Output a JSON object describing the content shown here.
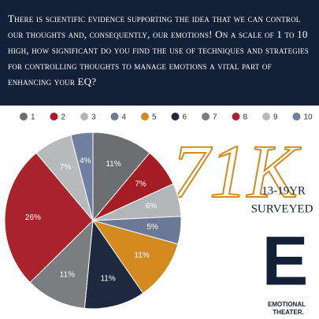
{
  "chart_data": {
    "type": "pie",
    "title": "There is scientific evidence supporting the idea that we can control our thoughts and, consequently, our emotions! On a scale of 1 to 10 high, how significant do you find the use of techniques and strategies for controlling thoughts to manage emotions a vital part of enhancing your EQ?",
    "categories": [
      "1",
      "2",
      "3",
      "4",
      "5",
      "6",
      "7",
      "8",
      "9",
      "10"
    ],
    "values": [
      11,
      7,
      6,
      5,
      11,
      11,
      11,
      26,
      7,
      4
    ],
    "value_labels": [
      "11%",
      "7%",
      "6%",
      "5%",
      "11%",
      "11%",
      "11%",
      "26%",
      "7%",
      "4%"
    ],
    "colors": [
      "#6d6e71",
      "#a61c24",
      "#b4b5b8",
      "#6b7896",
      "#d38a1e",
      "#1e2940",
      "#7c7d80",
      "#a9232c",
      "#b8b9bb",
      "#7180a0"
    ],
    "annotations": {
      "count": "71K",
      "age": "13-19YR",
      "surveyed": "SURVEYED",
      "logo": "E",
      "brand_1": "EMOTIONAL",
      "brand_2": "THEATER."
    }
  }
}
